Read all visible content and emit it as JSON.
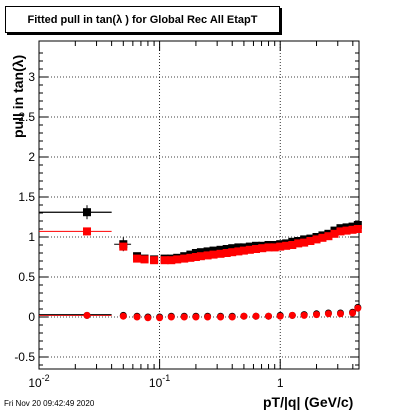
{
  "title": "Fitted pull in tan(λ ) for Global Rec All EtapT",
  "timestamp": "Fri Nov 20 09:42:49 2020",
  "chart_data": {
    "type": "scatter",
    "title": "Fitted pull in tan(λ ) for Global Rec All EtapT",
    "xlabel": "pT/|q| (GeV/c)",
    "ylabel": "pull in tan(λ)",
    "xscale": "log",
    "xlim": [
      0.01,
      4.5
    ],
    "ylim": [
      -0.65,
      3.45
    ],
    "grid": true,
    "x_ticks": [
      {
        "value": 0.01,
        "label": "10",
        "exp": "-2"
      },
      {
        "value": 0.1,
        "label": "10",
        "exp": "-1"
      },
      {
        "value": 1,
        "label": "1",
        "exp": ""
      }
    ],
    "y_ticks": [
      {
        "value": -0.5,
        "label": "-0.5"
      },
      {
        "value": 0,
        "label": "0"
      },
      {
        "value": 0.5,
        "label": "0.5"
      },
      {
        "value": 1,
        "label": "1"
      },
      {
        "value": 1.5,
        "label": "1.5"
      },
      {
        "value": 2,
        "label": "2"
      },
      {
        "value": 2.5,
        "label": "2.5"
      },
      {
        "value": 3,
        "label": "3"
      }
    ],
    "series": [
      {
        "color": "#000000",
        "marker": "square",
        "x": [
          0.025,
          0.05,
          0.065,
          0.075,
          0.09,
          0.11,
          0.125,
          0.14,
          0.16,
          0.18,
          0.2,
          0.22,
          0.25,
          0.28,
          0.32,
          0.36,
          0.4,
          0.45,
          0.5,
          0.56,
          0.63,
          0.71,
          0.8,
          0.9,
          1.0,
          1.12,
          1.26,
          1.41,
          1.58,
          1.78,
          2.0,
          2.24,
          2.51,
          2.82,
          3.16,
          3.55,
          3.98,
          4.4
        ],
        "y": [
          1.31,
          0.91,
          0.76,
          0.73,
          0.72,
          0.73,
          0.73,
          0.74,
          0.76,
          0.78,
          0.8,
          0.81,
          0.82,
          0.83,
          0.84,
          0.85,
          0.86,
          0.87,
          0.87,
          0.88,
          0.89,
          0.89,
          0.9,
          0.9,
          0.91,
          0.92,
          0.94,
          0.95,
          0.97,
          0.98,
          1.0,
          1.02,
          1.04,
          1.08,
          1.11,
          1.12,
          1.13,
          1.15
        ],
        "xerr_left": [
          0.015,
          0.008
        ],
        "xerr_right": [
          0.015,
          0.008
        ]
      },
      {
        "color": "#ff0000",
        "marker": "square",
        "x": [
          0.025,
          0.05,
          0.065,
          0.075,
          0.09,
          0.11,
          0.125,
          0.14,
          0.16,
          0.18,
          0.2,
          0.22,
          0.25,
          0.28,
          0.32,
          0.36,
          0.4,
          0.45,
          0.5,
          0.56,
          0.63,
          0.71,
          0.8,
          0.9,
          1.0,
          1.12,
          1.26,
          1.41,
          1.58,
          1.78,
          2.0,
          2.24,
          2.51,
          2.82,
          3.16,
          3.55,
          3.98,
          4.4
        ],
        "y": [
          1.07,
          0.88,
          0.73,
          0.72,
          0.71,
          0.71,
          0.71,
          0.72,
          0.73,
          0.74,
          0.75,
          0.76,
          0.77,
          0.78,
          0.79,
          0.8,
          0.81,
          0.82,
          0.83,
          0.84,
          0.85,
          0.86,
          0.87,
          0.87,
          0.88,
          0.89,
          0.9,
          0.92,
          0.93,
          0.95,
          0.97,
          0.99,
          1.01,
          1.04,
          1.07,
          1.08,
          1.09,
          1.1
        ]
      },
      {
        "color": "#000000",
        "marker": "circle",
        "x": [
          0.025,
          0.05,
          0.065,
          0.08,
          0.1,
          0.125,
          0.16,
          0.2,
          0.25,
          0.32,
          0.4,
          0.5,
          0.63,
          0.8,
          1.0,
          1.26,
          1.58,
          2.0,
          2.51,
          3.16,
          3.98,
          4.4
        ],
        "y": [
          0.02,
          0.02,
          0.01,
          0.0,
          0.0,
          0.01,
          0.01,
          0.01,
          0.01,
          0.01,
          0.01,
          0.01,
          0.01,
          0.01,
          0.02,
          0.02,
          0.03,
          0.04,
          0.05,
          0.05,
          0.06,
          0.12
        ]
      },
      {
        "color": "#ff0000",
        "marker": "circle",
        "x": [
          0.025,
          0.05,
          0.065,
          0.08,
          0.1,
          0.125,
          0.16,
          0.2,
          0.25,
          0.32,
          0.4,
          0.5,
          0.63,
          0.8,
          1.0,
          1.26,
          1.58,
          2.0,
          2.51,
          3.16,
          3.98,
          4.4
        ],
        "y": [
          0.02,
          0.01,
          0.0,
          -0.01,
          -0.01,
          0.0,
          0.0,
          0.0,
          0.0,
          0.0,
          0.0,
          0.01,
          0.01,
          0.01,
          0.01,
          0.02,
          0.02,
          0.03,
          0.04,
          0.04,
          0.05,
          0.11
        ]
      }
    ],
    "reference_lines": [
      {
        "color": "#ff0000",
        "y": 1.07,
        "x_from": 0.01,
        "x_to": 0.04
      },
      {
        "color": "#000000",
        "y": 1.31,
        "x_from": 0.01,
        "x_to": 0.04
      },
      {
        "color": "#ff0000",
        "y": 0.02,
        "x_from": 0.01,
        "x_to": 0.04
      },
      {
        "color": "#000000",
        "y": 0.03,
        "x_from": 0.01,
        "x_to": 0.04
      }
    ]
  }
}
